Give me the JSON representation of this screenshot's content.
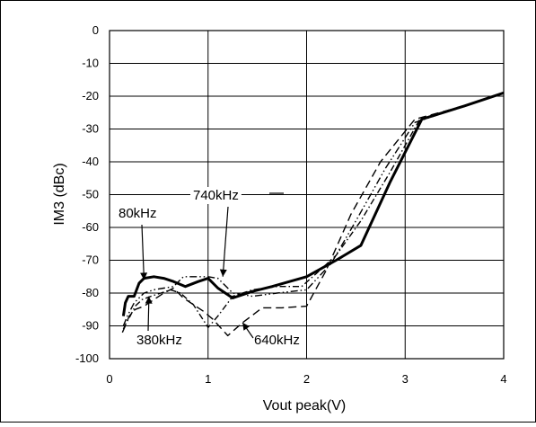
{
  "chart_data": {
    "type": "line",
    "title": "",
    "xlabel": "Vout peak(V)",
    "ylabel": "IM3 (dBc)",
    "xlim": [
      0,
      4
    ],
    "ylim": [
      -100,
      0
    ],
    "x_ticks": [
      0,
      1,
      2,
      3,
      4
    ],
    "y_ticks": [
      0,
      -10,
      -20,
      -30,
      -40,
      -50,
      -60,
      -70,
      -80,
      -90,
      -100
    ],
    "grid": true,
    "legend": "none",
    "series": [
      {
        "name": "80kHz",
        "style": "solid-thick",
        "x": [
          0.14,
          0.16,
          0.19,
          0.25,
          0.3,
          0.35,
          0.45,
          0.55,
          0.65,
          0.77,
          0.9,
          1.0,
          1.1,
          1.25,
          1.45,
          1.65,
          2.0,
          2.3,
          2.55,
          2.85,
          3.17,
          3.6,
          4.0
        ],
        "y": [
          -87,
          -83,
          -81,
          -81,
          -77,
          -75.5,
          -75,
          -75.5,
          -76.5,
          -78,
          -76.5,
          -75.5,
          -78.5,
          -81.5,
          -79.5,
          -78,
          -75,
          -70,
          -65.5,
          -46,
          -27,
          -23,
          -19
        ]
      },
      {
        "name": "380kHz",
        "style": "dash-dot",
        "x": [
          0.14,
          0.17,
          0.21,
          0.26,
          0.33,
          0.42,
          0.52,
          0.62,
          0.72,
          0.85,
          1.0,
          1.1,
          1.25,
          1.45,
          1.7,
          1.95,
          2.1,
          2.3,
          2.55,
          2.85,
          3.15,
          3.6,
          4.0
        ],
        "y": [
          -91,
          -89,
          -87,
          -84,
          -82,
          -81,
          -80,
          -79,
          -80,
          -83.5,
          -90.5,
          -87,
          -81,
          -79,
          -78,
          -78,
          -74,
          -68.5,
          -58,
          -43,
          -27,
          -23,
          -19
        ]
      },
      {
        "name": "640kHz",
        "style": "long-dash",
        "x": [
          0.13,
          0.16,
          0.2,
          0.26,
          0.35,
          0.45,
          0.55,
          0.65,
          0.75,
          0.85,
          0.95,
          1.05,
          1.2,
          1.35,
          1.55,
          1.75,
          2.0,
          2.2,
          2.45,
          2.75,
          3.1,
          3.6,
          4.0
        ],
        "y": [
          -92,
          -90,
          -87,
          -85,
          -84,
          -82,
          -80,
          -78.5,
          -81.5,
          -83.5,
          -85.5,
          -88,
          -93,
          -89,
          -84.5,
          -84.5,
          -84,
          -73,
          -56,
          -40,
          -27,
          -23,
          -19
        ]
      },
      {
        "name": "740kHz",
        "style": "dash-dot-dot",
        "x": [
          0.14,
          0.18,
          0.25,
          0.35,
          0.45,
          0.55,
          0.65,
          0.75,
          0.9,
          1.0,
          1.1,
          1.25,
          1.45,
          1.7,
          2.0,
          2.25,
          2.5,
          2.8,
          3.1,
          3.6,
          4.0
        ],
        "y": [
          -90,
          -87,
          -83,
          -80,
          -79,
          -78.5,
          -78,
          -75,
          -75,
          -75,
          -75.5,
          -80,
          -81,
          -80,
          -79,
          -71,
          -58,
          -42,
          -28,
          -23,
          -19
        ]
      }
    ],
    "annotations": [
      {
        "text": "80kHz",
        "series": "80kHz",
        "arrow_to": [
          0.35,
          -76
        ]
      },
      {
        "text": "740kHz",
        "series": "740kHz",
        "arrow_to": [
          1.15,
          -75
        ]
      },
      {
        "text": "380kHz",
        "series": "380kHz",
        "arrow_to": [
          0.4,
          -81
        ]
      },
      {
        "text": "640kHz",
        "series": "640kHz",
        "arrow_to": [
          1.35,
          -89
        ]
      }
    ]
  }
}
